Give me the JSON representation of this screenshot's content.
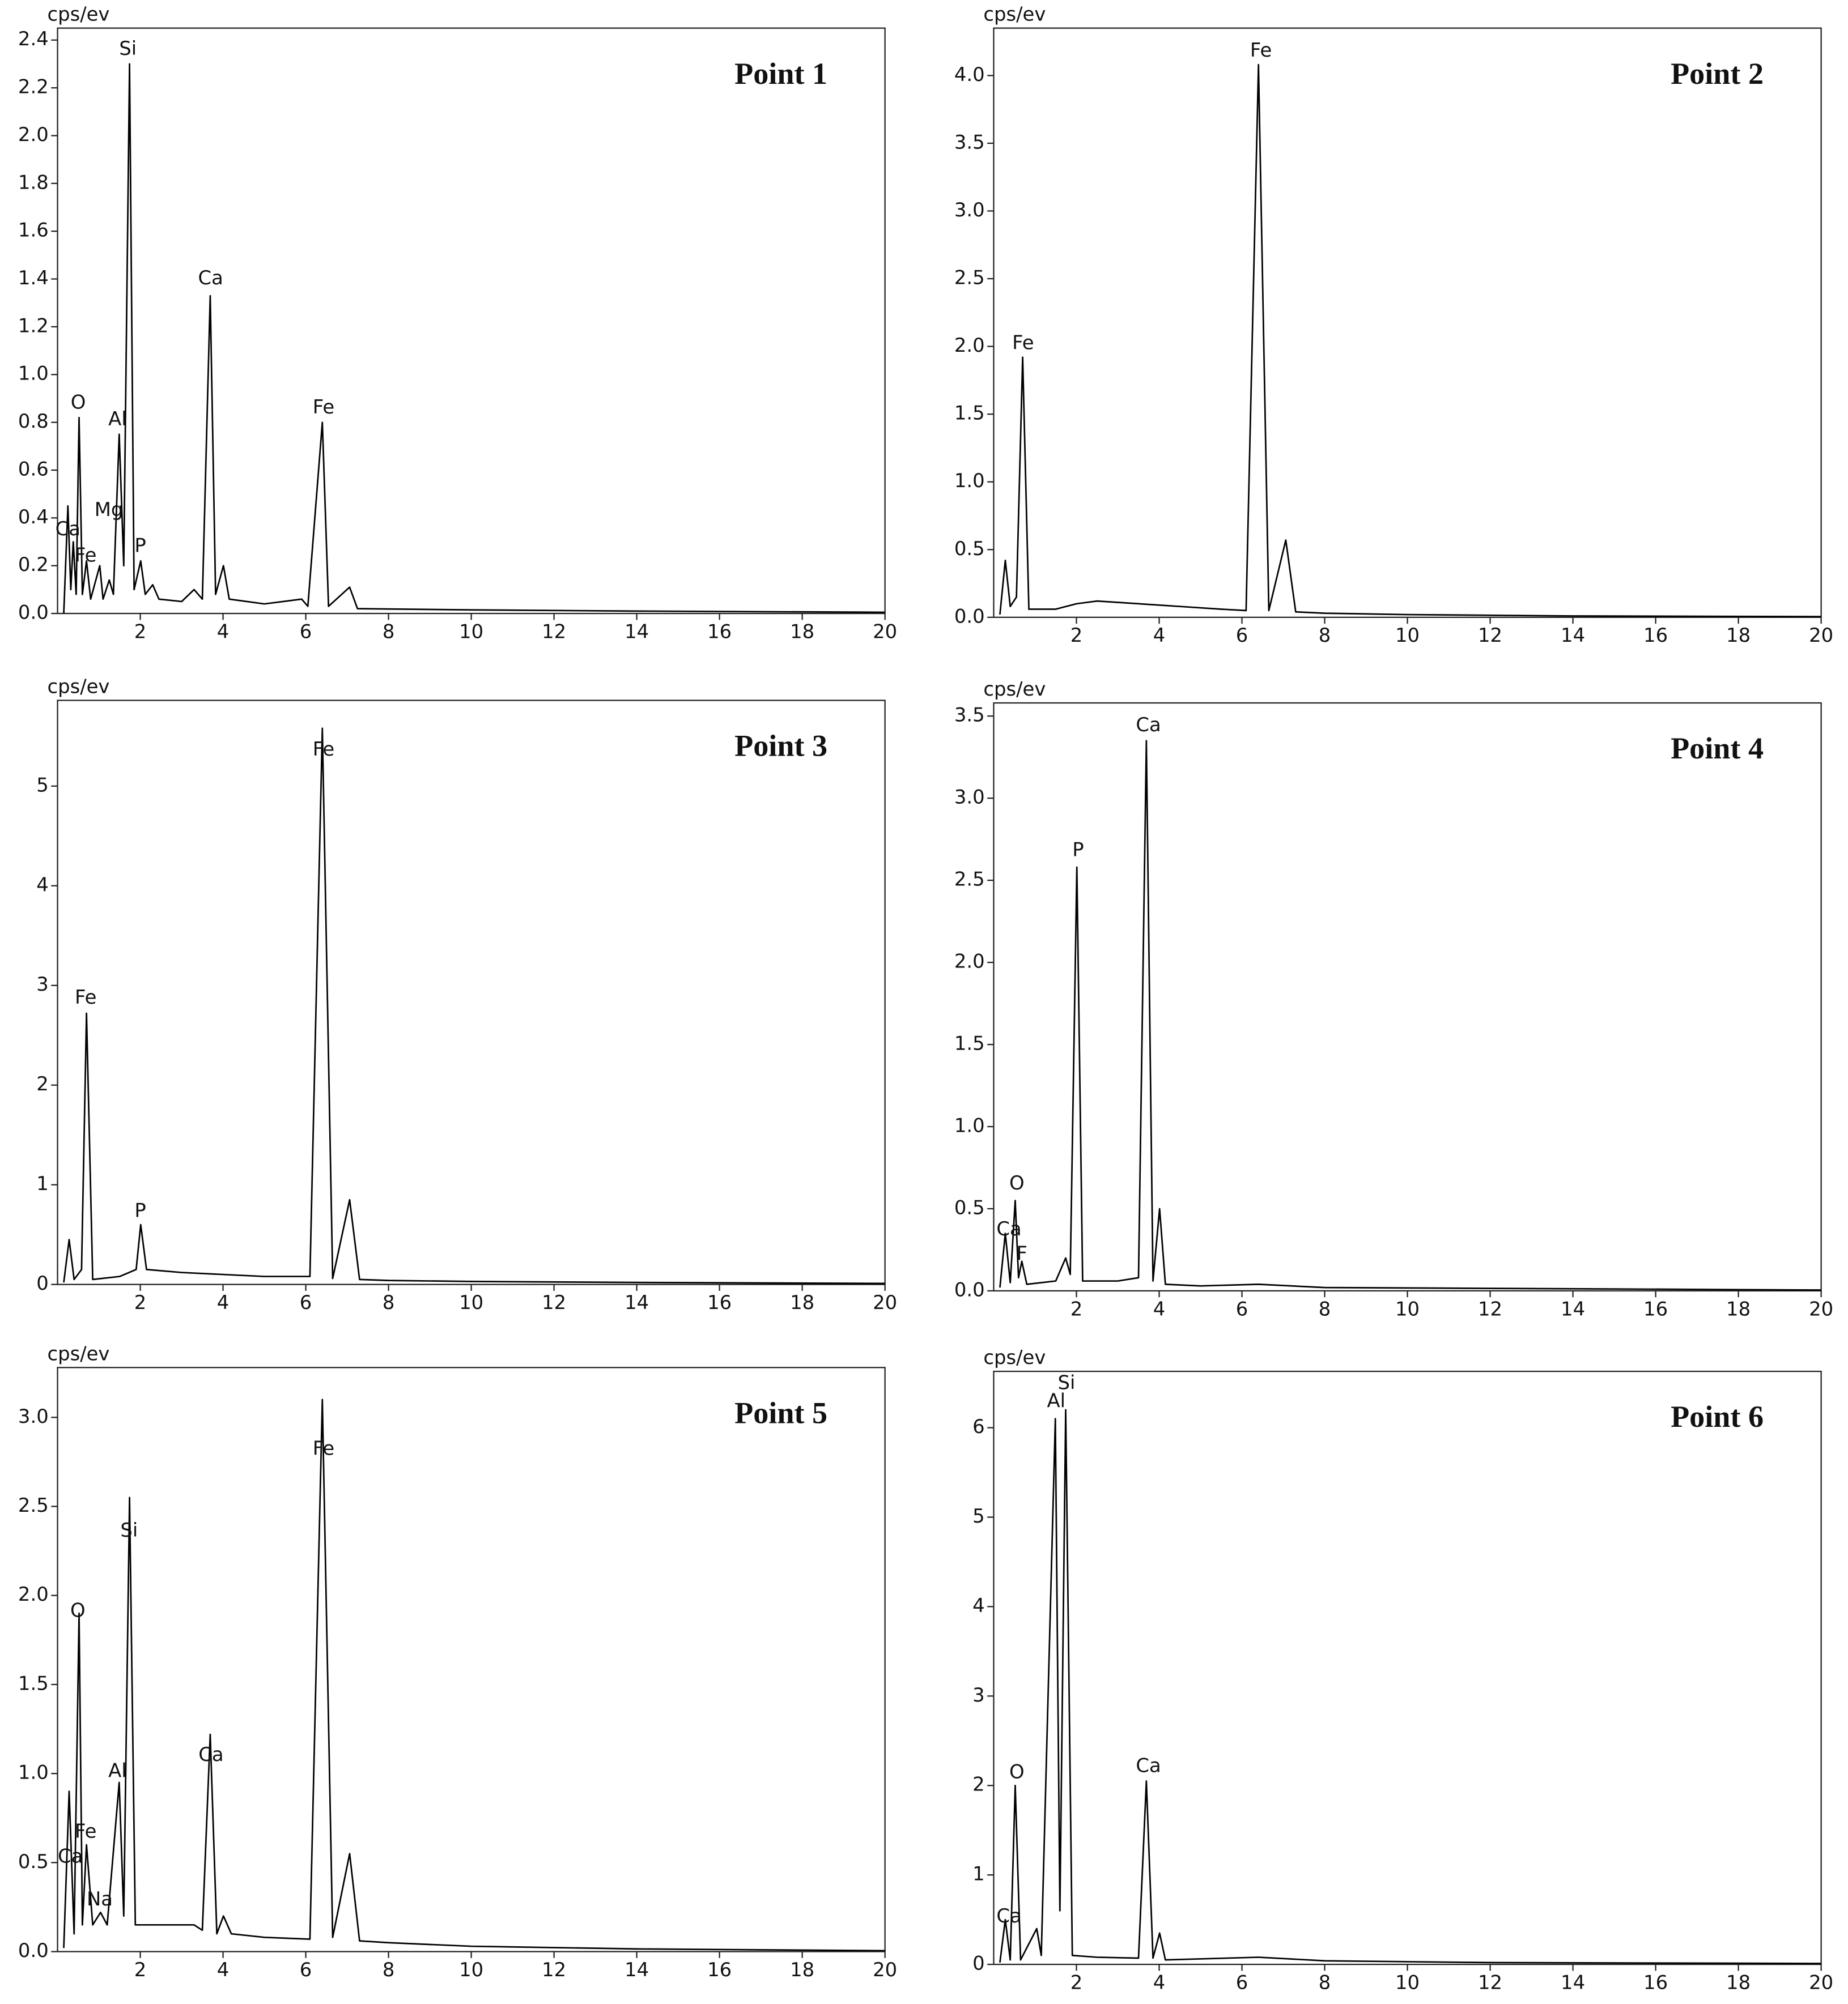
{
  "chart_data": [
    {
      "type": "line",
      "title": "Point 1",
      "y_label": "cps/ev",
      "color": "#000000",
      "xlim": [
        0,
        20
      ],
      "ylim": [
        0,
        2.45
      ],
      "xticks": [
        2,
        4,
        6,
        8,
        10,
        12,
        14,
        16,
        18,
        20
      ],
      "yticks": [
        {
          "value": 0,
          "label": "0.0"
        },
        0.2,
        0.4,
        0.6,
        0.8,
        {
          "value": 1,
          "label": "1.0"
        },
        1.2,
        1.4,
        1.6,
        1.8,
        {
          "value": 2,
          "label": "2.0"
        },
        2.2,
        2.4
      ],
      "x": [
        0.15,
        0.25,
        0.32,
        0.38,
        0.45,
        0.52,
        0.6,
        0.7,
        0.8,
        1.02,
        1.1,
        1.25,
        1.35,
        1.49,
        1.6,
        1.74,
        1.85,
        2.01,
        2.12,
        2.3,
        2.45,
        3.0,
        3.3,
        3.5,
        3.69,
        3.82,
        4.01,
        4.15,
        5.0,
        5.9,
        6.05,
        6.4,
        6.55,
        7.06,
        7.25,
        10,
        14,
        20
      ],
      "values": [
        0,
        0.45,
        0.1,
        0.3,
        0.08,
        0.82,
        0.08,
        0.22,
        0.06,
        0.2,
        0.06,
        0.14,
        0.08,
        0.75,
        0.2,
        2.3,
        0.1,
        0.22,
        0.08,
        0.12,
        0.06,
        0.05,
        0.1,
        0.06,
        1.33,
        0.08,
        0.2,
        0.06,
        0.04,
        0.06,
        0.03,
        0.8,
        0.03,
        0.11,
        0.02,
        0.015,
        0.01,
        0.005
      ],
      "annotations": [
        {
          "text": "Si",
          "x": 1.7,
          "y": 2.36
        },
        {
          "text": "Ca",
          "x": 3.7,
          "y": 1.4
        },
        {
          "text": "Fe",
          "x": 6.43,
          "y": 0.86
        },
        {
          "text": "O",
          "x": 0.5,
          "y": 0.88
        },
        {
          "text": "Al",
          "x": 1.45,
          "y": 0.81
        },
        {
          "text": "Mg",
          "x": 1.24,
          "y": 0.43
        },
        {
          "text": "Ca",
          "x": 0.25,
          "y": 0.35
        },
        {
          "text": "Fe",
          "x": 0.68,
          "y": 0.24
        },
        {
          "text": "P",
          "x": 2.0,
          "y": 0.28
        }
      ]
    },
    {
      "type": "line",
      "title": "Point 2",
      "y_label": "cps/ev",
      "color": "#000000",
      "xlim": [
        0,
        20
      ],
      "ylim": [
        0,
        4.35
      ],
      "xticks": [
        2,
        4,
        6,
        8,
        10,
        12,
        14,
        16,
        18,
        20
      ],
      "yticks": [
        {
          "value": 0,
          "label": "0.0"
        },
        0.5,
        {
          "value": 1,
          "label": "1.0"
        },
        1.5,
        {
          "value": 2,
          "label": "2.0"
        },
        2.5,
        {
          "value": 3,
          "label": "3.0"
        },
        3.5,
        {
          "value": 4,
          "label": "4.0"
        }
      ],
      "x": [
        0.15,
        0.28,
        0.4,
        0.55,
        0.7,
        0.85,
        1.5,
        2.0,
        2.5,
        3.5,
        4.5,
        5.5,
        6.1,
        6.4,
        6.65,
        7.06,
        7.3,
        8,
        10,
        14,
        20
      ],
      "values": [
        0.02,
        0.42,
        0.08,
        0.15,
        1.92,
        0.06,
        0.06,
        0.1,
        0.12,
        0.1,
        0.08,
        0.06,
        0.05,
        4.08,
        0.05,
        0.57,
        0.04,
        0.03,
        0.02,
        0.01,
        0.005
      ],
      "annotations": [
        {
          "text": "Fe",
          "x": 6.46,
          "y": 4.18
        },
        {
          "text": "Fe",
          "x": 0.71,
          "y": 2.02
        }
      ]
    },
    {
      "type": "line",
      "title": "Point 3",
      "y_label": "cps/ev",
      "color": "#000000",
      "xlim": [
        0,
        20
      ],
      "ylim": [
        0,
        5.86
      ],
      "xticks": [
        2,
        4,
        6,
        8,
        10,
        12,
        14,
        16,
        18,
        20
      ],
      "yticks": [
        0,
        1,
        2,
        3,
        4,
        5
      ],
      "x": [
        0.15,
        0.28,
        0.4,
        0.58,
        0.7,
        0.85,
        1.5,
        1.9,
        2.01,
        2.15,
        3,
        4,
        5,
        6.1,
        6.4,
        6.65,
        7.06,
        7.3,
        8,
        10,
        14,
        20
      ],
      "values": [
        0.02,
        0.45,
        0.05,
        0.15,
        2.72,
        0.05,
        0.08,
        0.15,
        0.6,
        0.15,
        0.12,
        0.1,
        0.08,
        0.08,
        5.58,
        0.06,
        0.85,
        0.05,
        0.04,
        0.03,
        0.02,
        0.01
      ],
      "annotations": [
        {
          "text": "Fe",
          "x": 6.43,
          "y": 5.36
        },
        {
          "text": "Fe",
          "x": 0.68,
          "y": 2.87
        },
        {
          "text": "P",
          "x": 2.0,
          "y": 0.73
        }
      ]
    },
    {
      "type": "line",
      "title": "Point 4",
      "y_label": "cps/ev",
      "color": "#000000",
      "xlim": [
        0,
        20
      ],
      "ylim": [
        0,
        3.58
      ],
      "xticks": [
        2,
        4,
        6,
        8,
        10,
        12,
        14,
        16,
        18,
        20
      ],
      "yticks": [
        {
          "value": 0,
          "label": "0.0"
        },
        0.5,
        {
          "value": 1,
          "label": "1.0"
        },
        1.5,
        {
          "value": 2,
          "label": "2.0"
        },
        2.5,
        {
          "value": 3,
          "label": "3.0"
        },
        3.5
      ],
      "x": [
        0.15,
        0.28,
        0.4,
        0.52,
        0.6,
        0.68,
        0.8,
        1.5,
        1.74,
        1.85,
        2.01,
        2.15,
        3.0,
        3.5,
        3.69,
        3.85,
        4.01,
        4.15,
        5,
        6.4,
        8,
        12,
        20
      ],
      "values": [
        0.02,
        0.35,
        0.05,
        0.55,
        0.08,
        0.18,
        0.04,
        0.06,
        0.2,
        0.1,
        2.58,
        0.06,
        0.06,
        0.08,
        3.35,
        0.06,
        0.5,
        0.04,
        0.03,
        0.04,
        0.02,
        0.015,
        0.005
      ],
      "annotations": [
        {
          "text": "Ca",
          "x": 3.74,
          "y": 3.44
        },
        {
          "text": "P",
          "x": 2.04,
          "y": 2.68
        },
        {
          "text": "O",
          "x": 0.56,
          "y": 0.65
        },
        {
          "text": "Ca",
          "x": 0.37,
          "y": 0.37
        },
        {
          "text": "F",
          "x": 0.68,
          "y": 0.22
        }
      ]
    },
    {
      "type": "line",
      "title": "Point 5",
      "y_label": "cps/ev",
      "color": "#000000",
      "xlim": [
        0,
        20
      ],
      "ylim": [
        0,
        3.28
      ],
      "xticks": [
        2,
        4,
        6,
        8,
        10,
        12,
        14,
        16,
        18,
        20
      ],
      "yticks": [
        {
          "value": 0,
          "label": "0.0"
        },
        0.5,
        {
          "value": 1,
          "label": "1.0"
        },
        1.5,
        {
          "value": 2,
          "label": "2.0"
        },
        2.5,
        {
          "value": 3,
          "label": "3.0"
        }
      ],
      "x": [
        0.15,
        0.28,
        0.4,
        0.52,
        0.6,
        0.7,
        0.85,
        1.04,
        1.2,
        1.49,
        1.6,
        1.74,
        1.88,
        2.5,
        3.3,
        3.5,
        3.69,
        3.85,
        4.01,
        4.2,
        5,
        6.1,
        6.4,
        6.65,
        7.06,
        7.3,
        8,
        10,
        14,
        20
      ],
      "values": [
        0.02,
        0.9,
        0.1,
        1.9,
        0.15,
        0.6,
        0.15,
        0.22,
        0.15,
        0.95,
        0.2,
        2.55,
        0.15,
        0.15,
        0.15,
        0.12,
        1.22,
        0.1,
        0.2,
        0.1,
        0.08,
        0.07,
        3.1,
        0.08,
        0.55,
        0.06,
        0.05,
        0.03,
        0.015,
        0.005
      ],
      "annotations": [
        {
          "text": "Fe",
          "x": 6.43,
          "y": 2.82
        },
        {
          "text": "Si",
          "x": 1.73,
          "y": 2.36
        },
        {
          "text": "O",
          "x": 0.49,
          "y": 1.91
        },
        {
          "text": "Al",
          "x": 1.45,
          "y": 1.01
        },
        {
          "text": "Ca",
          "x": 3.71,
          "y": 1.1
        },
        {
          "text": "Fe",
          "x": 0.68,
          "y": 0.67
        },
        {
          "text": "Ca",
          "x": 0.31,
          "y": 0.53
        },
        {
          "text": "Na",
          "x": 1.02,
          "y": 0.29
        }
      ]
    },
    {
      "type": "line",
      "title": "Point 6",
      "y_label": "cps/ev",
      "color": "#000000",
      "xlim": [
        0,
        20
      ],
      "ylim": [
        0,
        6.63
      ],
      "xticks": [
        2,
        4,
        6,
        8,
        10,
        12,
        14,
        16,
        18,
        20
      ],
      "yticks": [
        0,
        1,
        2,
        3,
        4,
        5,
        6
      ],
      "x": [
        0.15,
        0.28,
        0.4,
        0.52,
        0.65,
        1.04,
        1.15,
        1.49,
        1.6,
        1.74,
        1.9,
        2.5,
        3.5,
        3.69,
        3.85,
        4.01,
        4.15,
        6.4,
        8,
        12,
        20
      ],
      "values": [
        0.02,
        0.5,
        0.05,
        2.0,
        0.05,
        0.4,
        0.1,
        6.1,
        0.6,
        6.2,
        0.1,
        0.08,
        0.07,
        2.05,
        0.07,
        0.35,
        0.05,
        0.08,
        0.04,
        0.02,
        0.01
      ],
      "annotations": [
        {
          "text": "Si",
          "x": 1.76,
          "y": 6.49
        },
        {
          "text": "Al",
          "x": 1.51,
          "y": 6.29
        },
        {
          "text": "O",
          "x": 0.56,
          "y": 2.14
        },
        {
          "text": "Ca",
          "x": 3.74,
          "y": 2.21
        },
        {
          "text": "Ca",
          "x": 0.37,
          "y": 0.53
        }
      ]
    }
  ]
}
